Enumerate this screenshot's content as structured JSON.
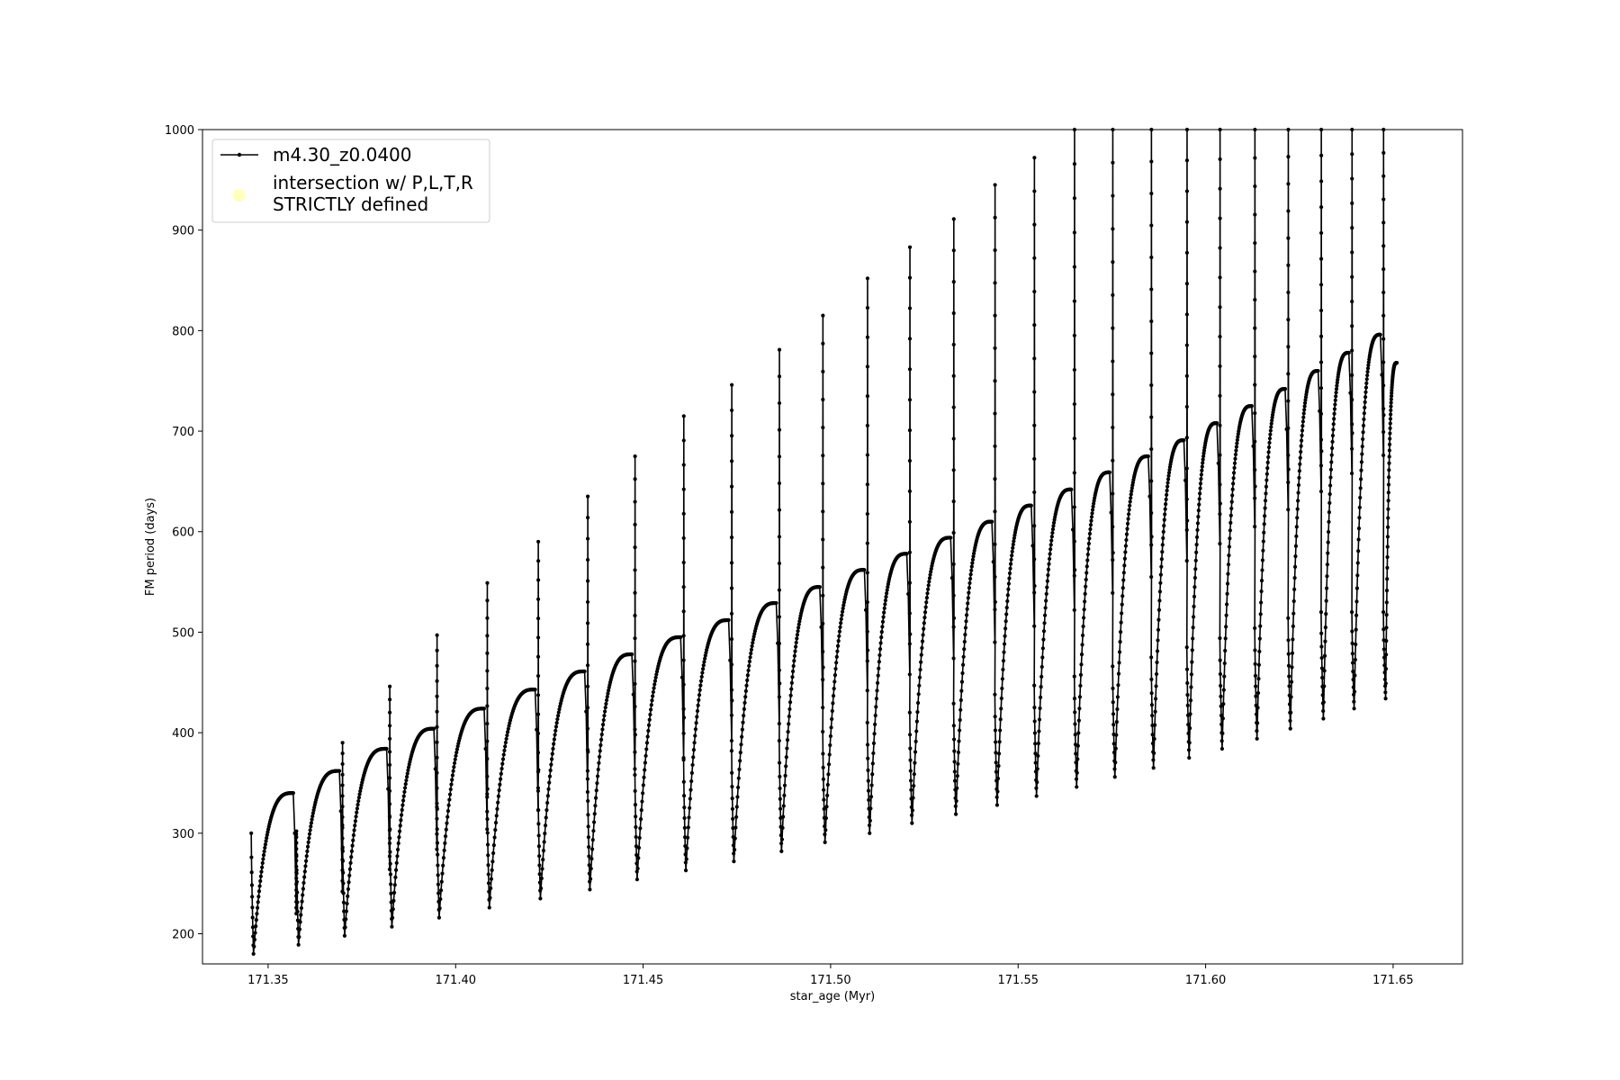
{
  "chart_data": {
    "type": "line",
    "title": "",
    "xlabel": "star_age (Myr)",
    "ylabel": "FM period (days)",
    "xlim": [
      171.3325,
      171.6685
    ],
    "ylim": [
      170,
      1000
    ],
    "xticks": [
      171.35,
      171.4,
      171.45,
      171.5,
      171.55,
      171.6,
      171.65
    ],
    "xtick_labels": [
      "171.35",
      "171.40",
      "171.45",
      "171.50",
      "171.55",
      "171.60",
      "171.65"
    ],
    "yticks": [
      200,
      300,
      400,
      500,
      600,
      700,
      800,
      900,
      1000
    ],
    "ytick_labels": [
      "200",
      "300",
      "400",
      "500",
      "600",
      "700",
      "800",
      "900",
      "1000"
    ],
    "grid": false,
    "legend": {
      "position": "top-left",
      "entries": [
        {
          "label": "m4.30_z0.0400",
          "marker": "line-with-dots",
          "color": "#000000"
        },
        {
          "label_lines": [
            "intersection w/ P,L,T,R",
            "STRICTLY defined"
          ],
          "marker": "circle",
          "color": "#ffffb3"
        }
      ]
    },
    "series": [
      {
        "name": "m4.30_z0.0400",
        "color": "#000000",
        "style": "line-with-dots",
        "description_of_shape": "repeating thermal-pulse cycles: each cycle dips to a minimum, rises to a rounded maximum, then spikes upward",
        "cycles": [
          {
            "start_x": 171.3455,
            "trough_y": 180,
            "peak_x": 171.3567,
            "peak_y": 340,
            "spike_y": 302,
            "end_x": 171.3575
          },
          {
            "start_x": 171.3575,
            "trough_y": 189,
            "peak_x": 171.369,
            "peak_y": 362,
            "spike_y": 390,
            "end_x": 171.3698
          },
          {
            "start_x": 171.3698,
            "trough_y": 198,
            "peak_x": 171.3816,
            "peak_y": 384,
            "spike_y": 446,
            "end_x": 171.3824
          },
          {
            "start_x": 171.3824,
            "trough_y": 207,
            "peak_x": 171.3942,
            "peak_y": 404,
            "spike_y": 497,
            "end_x": 171.395
          },
          {
            "start_x": 171.395,
            "trough_y": 216,
            "peak_x": 171.4076,
            "peak_y": 424,
            "spike_y": 549,
            "end_x": 171.4084
          },
          {
            "start_x": 171.4084,
            "trough_y": 226,
            "peak_x": 171.4212,
            "peak_y": 443,
            "spike_y": 590,
            "end_x": 171.422
          },
          {
            "start_x": 171.422,
            "trough_y": 235,
            "peak_x": 171.4344,
            "peak_y": 461,
            "spike_y": 635,
            "end_x": 171.4352
          },
          {
            "start_x": 171.4352,
            "trough_y": 244,
            "peak_x": 171.447,
            "peak_y": 478,
            "spike_y": 675,
            "end_x": 171.4478
          },
          {
            "start_x": 171.4478,
            "trough_y": 254,
            "peak_x": 171.46,
            "peak_y": 495,
            "spike_y": 715,
            "end_x": 171.4608
          },
          {
            "start_x": 171.4608,
            "trough_y": 263,
            "peak_x": 171.4728,
            "peak_y": 512,
            "spike_y": 746,
            "end_x": 171.4736
          },
          {
            "start_x": 171.4736,
            "trough_y": 272,
            "peak_x": 171.4855,
            "peak_y": 529,
            "spike_y": 781,
            "end_x": 171.4863
          },
          {
            "start_x": 171.4863,
            "trough_y": 282,
            "peak_x": 171.4971,
            "peak_y": 545,
            "spike_y": 815,
            "end_x": 171.4979
          },
          {
            "start_x": 171.4979,
            "trough_y": 291,
            "peak_x": 171.509,
            "peak_y": 562,
            "spike_y": 852,
            "end_x": 171.5098
          },
          {
            "start_x": 171.5098,
            "trough_y": 300,
            "peak_x": 171.5203,
            "peak_y": 578,
            "spike_y": 883,
            "end_x": 171.5211
          },
          {
            "start_x": 171.5211,
            "trough_y": 310,
            "peak_x": 171.532,
            "peak_y": 594,
            "spike_y": 911,
            "end_x": 171.5328
          },
          {
            "start_x": 171.5328,
            "trough_y": 319,
            "peak_x": 171.543,
            "peak_y": 610,
            "spike_y": 945,
            "end_x": 171.5438
          },
          {
            "start_x": 171.5438,
            "trough_y": 328,
            "peak_x": 171.5535,
            "peak_y": 626,
            "spike_y": 972,
            "end_x": 171.5543
          },
          {
            "start_x": 171.5543,
            "trough_y": 337,
            "peak_x": 171.5642,
            "peak_y": 642,
            "spike_y": 1000,
            "end_x": 171.565
          },
          {
            "start_x": 171.565,
            "trough_y": 346,
            "peak_x": 171.5744,
            "peak_y": 659,
            "spike_y": 1000,
            "end_x": 171.5752
          },
          {
            "start_x": 171.5752,
            "trough_y": 356,
            "peak_x": 171.5847,
            "peak_y": 675,
            "spike_y": 1000,
            "end_x": 171.5855
          },
          {
            "start_x": 171.5855,
            "trough_y": 365,
            "peak_x": 171.5942,
            "peak_y": 691,
            "spike_y": 1000,
            "end_x": 171.595
          },
          {
            "start_x": 171.595,
            "trough_y": 375,
            "peak_x": 171.603,
            "peak_y": 708,
            "spike_y": 1000,
            "end_x": 171.6038
          },
          {
            "start_x": 171.6038,
            "trough_y": 384,
            "peak_x": 171.6123,
            "peak_y": 725,
            "spike_y": 1000,
            "end_x": 171.6131
          },
          {
            "start_x": 171.6131,
            "trough_y": 394,
            "peak_x": 171.6212,
            "peak_y": 742,
            "spike_y": 1000,
            "end_x": 171.622
          },
          {
            "start_x": 171.622,
            "trough_y": 404,
            "peak_x": 171.63,
            "peak_y": 760,
            "spike_y": 1000,
            "end_x": 171.6308
          },
          {
            "start_x": 171.6308,
            "trough_y": 414,
            "peak_x": 171.6382,
            "peak_y": 778,
            "spike_y": 1000,
            "end_x": 171.639
          },
          {
            "start_x": 171.639,
            "trough_y": 424,
            "peak_x": 171.6466,
            "peak_y": 796,
            "spike_y": 1000,
            "end_x": 171.6474
          },
          {
            "start_x": 171.6474,
            "trough_y": 434,
            "peak_x": 171.651,
            "peak_y": 768,
            "spike_y": null,
            "end_x": 171.651
          }
        ]
      }
    ]
  }
}
